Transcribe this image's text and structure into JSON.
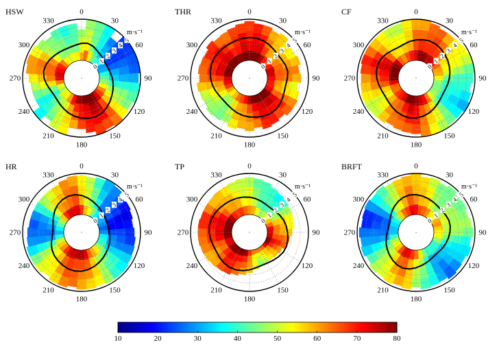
{
  "chart_data": {
    "type": "heatmap",
    "subtype": "polar",
    "wind_speed_unit": "m·s⁻¹",
    "direction_ticks": [
      "0",
      "30",
      "60",
      "90",
      "120",
      "150",
      "180",
      "210",
      "240",
      "270",
      "300",
      "330"
    ],
    "speed_ring_labels": [
      "0",
      "1",
      "2",
      "3",
      "4",
      "5"
    ],
    "colorbar": {
      "ticks": [
        "10",
        "20",
        "30",
        "40",
        "50",
        "60",
        "70",
        "80"
      ],
      "range": [
        10,
        80
      ],
      "colormap": "jet"
    },
    "panels": [
      {
        "name": "HSW",
        "sector_values": [
          48,
          58,
          45,
          36,
          30,
          26,
          22,
          24,
          28,
          34,
          40,
          44,
          50,
          58,
          66,
          72,
          76,
          74,
          70,
          66,
          60,
          52,
          46,
          40,
          38,
          44,
          52,
          62,
          66,
          64,
          58,
          52,
          46,
          44,
          40,
          46
        ],
        "sector_extent": [
          0.75,
          1,
          1,
          1,
          0.78,
          1,
          1,
          1,
          1,
          0.95,
          1,
          1,
          0.92,
          0.95,
          1,
          0.95,
          1,
          0.9,
          0.8,
          0.8,
          1,
          0.95,
          0.85,
          1,
          0.8,
          0.8,
          0.8,
          0.85,
          0.92,
          0.95,
          0.95,
          0.9,
          0.82,
          0.9,
          0.9,
          0.9
        ]
      },
      {
        "name": "THR",
        "sector_values": [
          72,
          74,
          70,
          66,
          60,
          56,
          58,
          64,
          68,
          62,
          56,
          58,
          64,
          70,
          74,
          76,
          72,
          68,
          66,
          62,
          58,
          52,
          48,
          46,
          50,
          56,
          62,
          66,
          70,
          72,
          74,
          72,
          70,
          68,
          70,
          72
        ],
        "sector_extent": [
          0.95,
          0.9,
          0.9,
          0.85,
          0.9,
          0.82,
          0.8,
          0.85,
          0.78,
          0.82,
          0.75,
          0.82,
          0.85,
          0.85,
          0.78,
          0.82,
          0.85,
          0.78,
          0.85,
          0.8,
          0.85,
          0.78,
          0.82,
          0.85,
          0.8,
          0.82,
          0.85,
          0.78,
          0.82,
          0.8,
          0.78,
          0.85,
          0.8,
          0.82,
          0.85,
          0.9
        ]
      },
      {
        "name": "CF",
        "sector_values": [
          64,
          66,
          70,
          68,
          64,
          60,
          56,
          52,
          48,
          44,
          40,
          36,
          34,
          38,
          44,
          52,
          60,
          66,
          70,
          72,
          70,
          66,
          60,
          56,
          52,
          56,
          62,
          68,
          72,
          74,
          70,
          64,
          56,
          50,
          54,
          60
        ],
        "sector_extent": [
          1,
          1,
          0.95,
          0.9,
          0.9,
          0.92,
          0.95,
          1,
          1,
          0.95,
          0.9,
          0.95,
          1,
          0.95,
          0.95,
          1,
          1,
          0.98,
          0.92,
          0.9,
          0.88,
          0.85,
          0.9,
          0.92,
          0.95,
          0.95,
          0.92,
          0.9,
          0.92,
          0.95,
          0.95,
          0.95,
          0.95,
          0.95,
          0.95,
          1
        ]
      },
      {
        "name": "HR",
        "sector_values": [
          60,
          50,
          42,
          36,
          28,
          24,
          22,
          20,
          18,
          22,
          26,
          30,
          34,
          38,
          44,
          50,
          56,
          62,
          66,
          68,
          66,
          62,
          58,
          54,
          48,
          40,
          30,
          24,
          26,
          32,
          40,
          50,
          58,
          62,
          66,
          64
        ],
        "sector_extent": [
          0.95,
          0.92,
          0.95,
          0.98,
          0.95,
          0.85,
          0.88,
          0.85,
          0.82,
          0.85,
          0.88,
          0.9,
          0.92,
          0.95,
          0.95,
          0.95,
          0.92,
          0.95,
          0.95,
          0.9,
          0.95,
          0.95,
          0.9,
          0.95,
          0.95,
          0.95,
          0.9,
          0.88,
          0.85,
          0.85,
          0.85,
          0.85,
          0.85,
          0.85,
          0.9,
          0.95
        ]
      },
      {
        "name": "TP",
        "sector_values": [
          52,
          48,
          44,
          40,
          38,
          42,
          50,
          56,
          60,
          62,
          66,
          70,
          68,
          62,
          56,
          52,
          50,
          54,
          60,
          66,
          70,
          72,
          70,
          66,
          62,
          64,
          68,
          72,
          74,
          72,
          68,
          64,
          60,
          58,
          56,
          54
        ],
        "sector_extent": [
          0.9,
          0.88,
          0.85,
          0.78,
          0.75,
          0.72,
          0.7,
          0.68,
          0.65,
          0.6,
          0.55,
          0.5,
          0.45,
          0.42,
          0.4,
          0.4,
          0.42,
          0.48,
          0.55,
          0.6,
          0.65,
          0.7,
          0.72,
          0.75,
          0.78,
          0.8,
          0.82,
          0.82,
          0.82,
          0.8,
          0.8,
          0.8,
          0.82,
          0.82,
          0.85,
          0.88
        ]
      },
      {
        "name": "BRFT",
        "sector_values": [
          62,
          58,
          54,
          50,
          46,
          44,
          48,
          52,
          50,
          46,
          42,
          38,
          34,
          30,
          28,
          32,
          38,
          44,
          52,
          60,
          64,
          62,
          56,
          50,
          44,
          38,
          32,
          26,
          22,
          24,
          30,
          38,
          46,
          54,
          60,
          64
        ],
        "sector_extent": [
          1,
          0.92,
          0.95,
          0.9,
          0.95,
          0.9,
          0.92,
          0.88,
          0.92,
          0.95,
          0.9,
          0.95,
          0.9,
          0.92,
          0.95,
          0.9,
          0.92,
          0.95,
          0.9,
          0.95,
          0.92,
          0.95,
          0.92,
          0.95,
          0.9,
          0.95,
          0.92,
          0.95,
          0.9,
          0.92,
          0.95,
          0.92,
          0.95,
          0.9,
          0.92,
          0.95
        ]
      }
    ]
  }
}
